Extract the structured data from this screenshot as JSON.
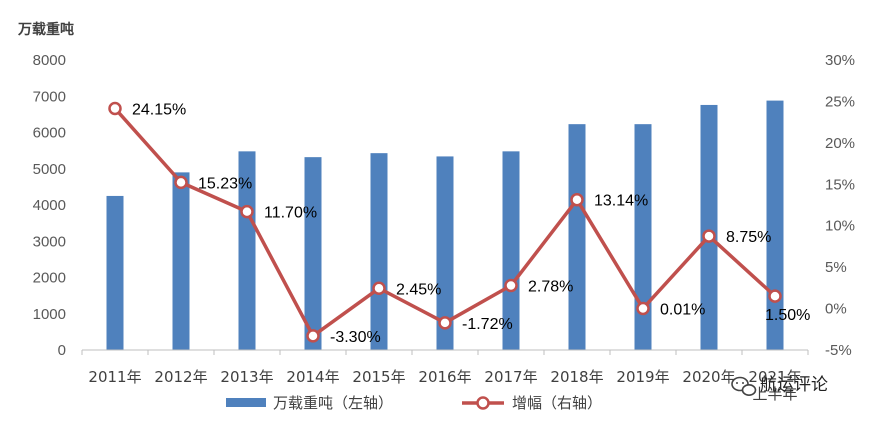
{
  "chart_data": {
    "type": "bar-line",
    "unit_label": "万载重吨",
    "categories": [
      "2011年",
      "2012年",
      "2013年",
      "2014年",
      "2015年",
      "2016年",
      "2017年",
      "2018年",
      "2019年",
      "2020年",
      "2021年上半年"
    ],
    "series": [
      {
        "name": "万载重吨（左轴）",
        "type": "bar",
        "axis": "left",
        "color": "#4F81BD",
        "values": [
          4250,
          4900,
          5480,
          5320,
          5430,
          5340,
          5480,
          6230,
          6230,
          6760,
          6880
        ]
      },
      {
        "name": "增幅（右轴）",
        "type": "line",
        "axis": "right",
        "color": "#C0504D",
        "values": [
          24.15,
          15.23,
          11.7,
          -3.3,
          2.45,
          -1.72,
          2.78,
          13.14,
          0.01,
          8.75,
          1.5
        ],
        "labels": [
          "24.15%",
          "15.23%",
          "11.70%",
          "-3.30%",
          "2.45%",
          "-1.72%",
          "2.78%",
          "13.14%",
          "0.01%",
          "8.75%",
          "1.50%"
        ]
      }
    ],
    "left_axis": {
      "min": 0,
      "max": 8000,
      "step": 1000,
      "ticks": [
        "0",
        "1000",
        "2000",
        "3000",
        "4000",
        "5000",
        "6000",
        "7000",
        "8000"
      ]
    },
    "right_axis": {
      "min": -5,
      "max": 30,
      "step": 5,
      "ticks": [
        "-5%",
        "0%",
        "5%",
        "10%",
        "15%",
        "20%",
        "25%",
        "30%"
      ]
    },
    "legend_position": "bottom",
    "grid": false
  },
  "watermark": {
    "text": "航运评论",
    "icon": "wechat-icon"
  }
}
